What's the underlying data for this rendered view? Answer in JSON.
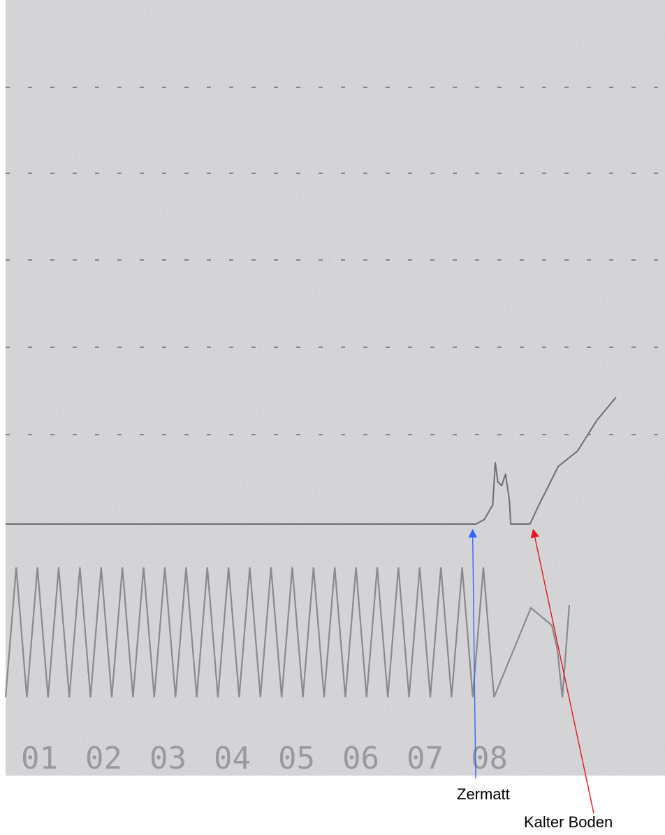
{
  "chart_data": {
    "type": "line",
    "title": "",
    "xlabel": "",
    "ylabel": "",
    "grid": true,
    "x_ticks": [
      "01",
      "02",
      "03",
      "04",
      "05",
      "06",
      "07",
      "08"
    ],
    "series": [
      {
        "role": "recorded-trace",
        "points": [
          [
            0.0,
            0.0
          ],
          [
            7.32,
            0.0
          ],
          [
            7.45,
            0.06
          ],
          [
            7.58,
            0.25
          ],
          [
            7.62,
            0.8
          ],
          [
            7.66,
            0.55
          ],
          [
            7.72,
            0.5
          ],
          [
            7.78,
            0.65
          ],
          [
            7.84,
            0.3
          ],
          [
            7.86,
            0.0
          ],
          [
            8.16,
            0.0
          ],
          [
            8.3,
            0.25
          ],
          [
            8.6,
            0.75
          ],
          [
            8.9,
            0.95
          ],
          [
            9.2,
            1.35
          ],
          [
            9.5,
            1.65
          ]
        ]
      },
      {
        "role": "timing-sawtooth",
        "cycles": 23,
        "x_start": 0.0,
        "x_end": 7.6,
        "min": 0,
        "max": 1
      }
    ],
    "annotations": [
      {
        "text": "Zermatt",
        "arrow_color": "#3366ff",
        "x": 7.3
      },
      {
        "text": "Kalter Boden",
        "arrow_color": "#e8141e",
        "x": 8.2
      }
    ]
  }
}
